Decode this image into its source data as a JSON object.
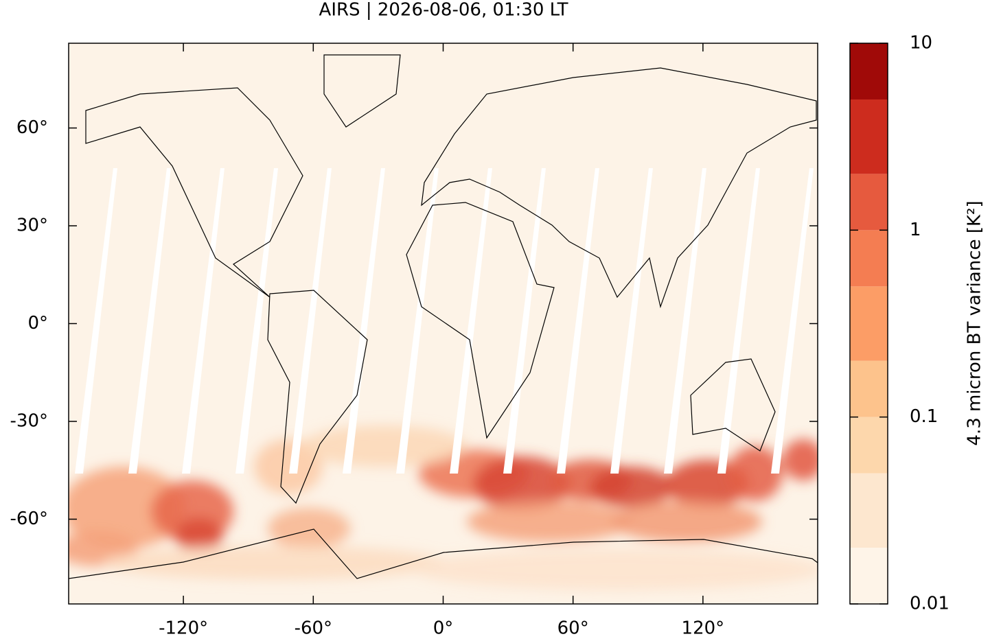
{
  "chart_data": {
    "type": "map",
    "title": "AIRS | 2026-08-06, 01:30 LT",
    "xlim": [
      -173,
      173
    ],
    "ylim": [
      -86,
      86
    ],
    "xticks": [
      {
        "value": -120,
        "label": "-120°"
      },
      {
        "value": -60,
        "label": "-60°"
      },
      {
        "value": 0,
        "label": "0°"
      },
      {
        "value": 60,
        "label": "60°"
      },
      {
        "value": 120,
        "label": "120°"
      }
    ],
    "yticks": [
      {
        "value": 60,
        "label": "60°"
      },
      {
        "value": 30,
        "label": "30°"
      },
      {
        "value": 0,
        "label": "0°"
      },
      {
        "value": -30,
        "label": "-30°"
      },
      {
        "value": -60,
        "label": "-60°"
      }
    ],
    "colorbar": {
      "label": "4.3 micron BT variance [K²]",
      "scale": "log",
      "lim": [
        0.01,
        10
      ],
      "ticks": [
        0.01,
        0.1,
        1,
        10
      ],
      "levels": [
        0.01,
        0.02,
        0.05,
        0.1,
        0.2,
        0.5,
        1,
        2,
        5,
        10
      ],
      "colors": [
        "#fef4e8",
        "#fde7cf",
        "#fdd7ac",
        "#fdc38c",
        "#fc9d66",
        "#f47d52",
        "#e65a3e",
        "#cd2c1e",
        "#a00a08"
      ]
    }
  }
}
